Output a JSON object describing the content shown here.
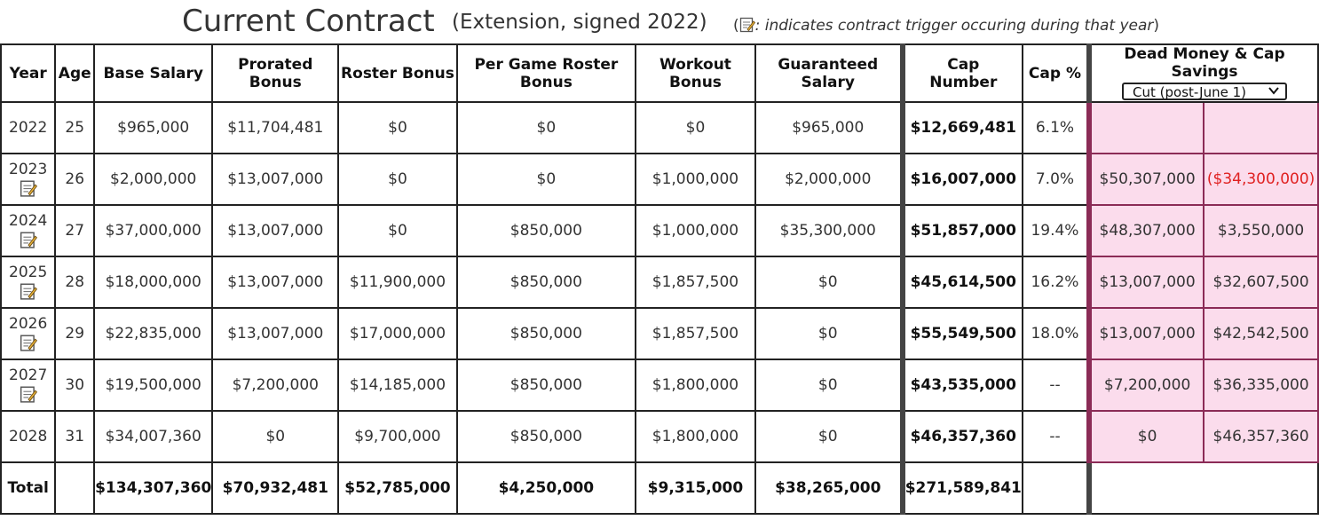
{
  "header": {
    "title": "Current Contract",
    "subtitle": "(Extension, signed 2022)",
    "note_open": "(",
    "note_text": ": indicates contract trigger occuring during that year",
    "note_close": ")",
    "note_icon": "document-edit-icon"
  },
  "columns": {
    "year": "Year",
    "age": "Age",
    "base_salary": "Base Salary",
    "prorated_bonus": "Prorated Bonus",
    "roster_bonus": "Roster Bonus",
    "per_game_roster_bonus": "Per Game Roster Bonus",
    "workout_bonus": "Workout Bonus",
    "guaranteed_salary": "Guaranteed Salary",
    "cap_number_line1": "Cap",
    "cap_number_line2": "Number",
    "cap_pct": "Cap %",
    "dead_money": "Dead Money & Cap Savings"
  },
  "cut_select": {
    "selected": "Cut (post-June 1)"
  },
  "rows": [
    {
      "year": "2022",
      "trigger": false,
      "age": "25",
      "base": "$965,000",
      "prorated": "$11,704,481",
      "roster": "$0",
      "per_game": "$0",
      "workout": "$0",
      "guaranteed": "$965,000",
      "cap": "$12,669,481",
      "cap_pct": "6.1%",
      "dead": "",
      "savings": ""
    },
    {
      "year": "2023",
      "trigger": true,
      "age": "26",
      "base": "$2,000,000",
      "prorated": "$13,007,000",
      "roster": "$0",
      "per_game": "$0",
      "workout": "$1,000,000",
      "guaranteed": "$2,000,000",
      "cap": "$16,007,000",
      "cap_pct": "7.0%",
      "dead": "$50,307,000",
      "savings": "($34,300,000)"
    },
    {
      "year": "2024",
      "trigger": true,
      "age": "27",
      "base": "$37,000,000",
      "prorated": "$13,007,000",
      "roster": "$0",
      "per_game": "$850,000",
      "workout": "$1,000,000",
      "guaranteed": "$35,300,000",
      "cap": "$51,857,000",
      "cap_pct": "19.4%",
      "dead": "$48,307,000",
      "savings": "$3,550,000"
    },
    {
      "year": "2025",
      "trigger": true,
      "age": "28",
      "base": "$18,000,000",
      "prorated": "$13,007,000",
      "roster": "$11,900,000",
      "per_game": "$850,000",
      "workout": "$1,857,500",
      "guaranteed": "$0",
      "cap": "$45,614,500",
      "cap_pct": "16.2%",
      "dead": "$13,007,000",
      "savings": "$32,607,500"
    },
    {
      "year": "2026",
      "trigger": true,
      "age": "29",
      "base": "$22,835,000",
      "prorated": "$13,007,000",
      "roster": "$17,000,000",
      "per_game": "$850,000",
      "workout": "$1,857,500",
      "guaranteed": "$0",
      "cap": "$55,549,500",
      "cap_pct": "18.0%",
      "dead": "$13,007,000",
      "savings": "$42,542,500"
    },
    {
      "year": "2027",
      "trigger": true,
      "age": "30",
      "base": "$19,500,000",
      "prorated": "$7,200,000",
      "roster": "$14,185,000",
      "per_game": "$850,000",
      "workout": "$1,800,000",
      "guaranteed": "$0",
      "cap": "$43,535,000",
      "cap_pct": "--",
      "dead": "$7,200,000",
      "savings": "$36,335,000"
    },
    {
      "year": "2028",
      "trigger": false,
      "age": "31",
      "base": "$34,007,360",
      "prorated": "$0",
      "roster": "$9,700,000",
      "per_game": "$850,000",
      "workout": "$1,800,000",
      "guaranteed": "$0",
      "cap": "$46,357,360",
      "cap_pct": "--",
      "dead": "$0",
      "savings": "$46,357,360"
    }
  ],
  "totals": {
    "label": "Total",
    "base": "$134,307,360",
    "prorated": "$70,932,481",
    "roster": "$52,785,000",
    "per_game": "$4,250,000",
    "workout": "$9,315,000",
    "guaranteed": "$38,265,000",
    "cap": "$271,589,841"
  },
  "colors": {
    "dead_bg": "#fbdcec",
    "negative": "#e02020"
  }
}
